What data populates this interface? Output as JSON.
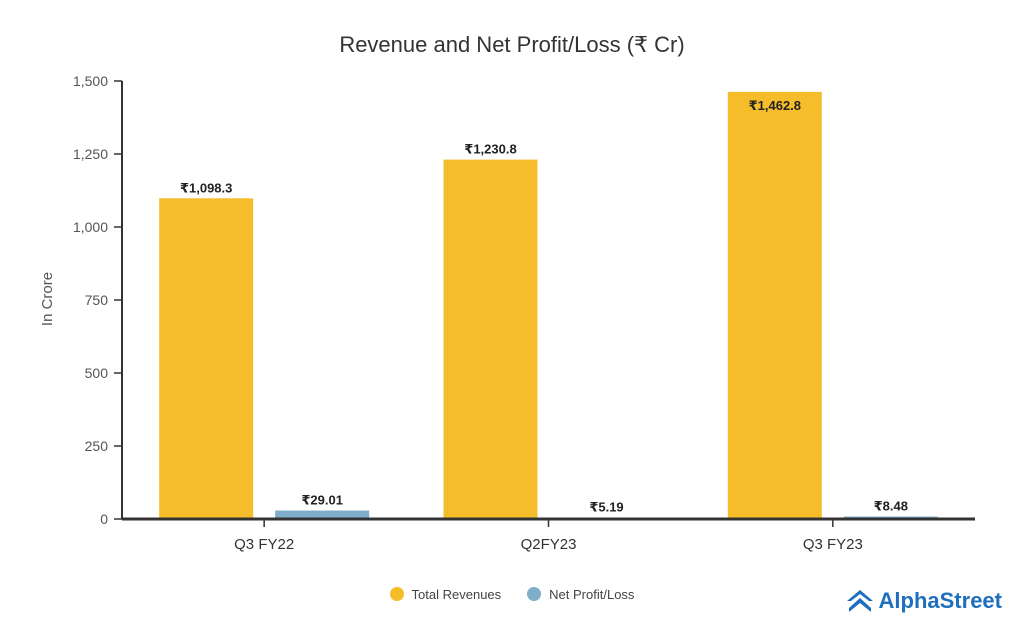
{
  "chart_data": {
    "type": "bar",
    "title": "Revenue and Net Profit/Loss (₹ Cr)",
    "ylabel": "In Crore",
    "xlabel": "",
    "ylim": [
      0,
      1500
    ],
    "yticks": [
      0,
      250,
      500,
      750,
      1000,
      1250,
      1500
    ],
    "ytick_labels": [
      "0",
      "250",
      "500",
      "750",
      "1,000",
      "1,250",
      "1,500"
    ],
    "categories": [
      "Q3 FY22",
      "Q2FY23",
      "Q3 FY23"
    ],
    "series": [
      {
        "name": "Total Revenues",
        "color": "#F6BD2A",
        "values": [
          1098.3,
          1230.8,
          1462.8
        ],
        "labels": [
          "₹1,098.3",
          "₹1,230.8",
          "₹1,462.8"
        ]
      },
      {
        "name": "Net Profit/Loss",
        "color": "#7FAECB",
        "values": [
          29.01,
          5.19,
          8.48
        ],
        "labels": [
          "₹29.01",
          "₹5.19",
          "₹8.48"
        ]
      }
    ],
    "legend_position": "bottom-center"
  },
  "brand": {
    "name": "AlphaStreet",
    "color": "#1f6fbf"
  }
}
